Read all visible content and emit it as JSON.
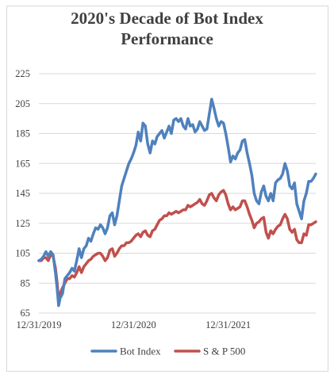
{
  "chart_data": {
    "type": "line",
    "title_lines": [
      "2020's Decade of Bot Index",
      "Performance"
    ],
    "xlabel": "",
    "ylabel": "",
    "ylim": [
      65,
      225
    ],
    "yticks": [
      "225",
      "205",
      "185",
      "165",
      "145",
      "125",
      "105",
      "85",
      "65"
    ],
    "xticks": [
      "12/31/2019",
      "12/31/2020",
      "12/31/2021"
    ],
    "grid": "horizontal",
    "legend_position": "bottom",
    "colors": {
      "bot": "#4f81bd",
      "sp": "#c0504d"
    },
    "x_unit": "months since 12/31/2019",
    "series": [
      {
        "name": "Bot Index",
        "points": [
          [
            0,
            100
          ],
          [
            0.3,
            101
          ],
          [
            0.6,
            103
          ],
          [
            0.9,
            106
          ],
          [
            1.2,
            103
          ],
          [
            1.5,
            106
          ],
          [
            1.8,
            104
          ],
          [
            2.1,
            92
          ],
          [
            2.3,
            82
          ],
          [
            2.5,
            70
          ],
          [
            2.7,
            75
          ],
          [
            3.0,
            78
          ],
          [
            3.3,
            88
          ],
          [
            3.6,
            90
          ],
          [
            3.9,
            92
          ],
          [
            4.2,
            95
          ],
          [
            4.5,
            93
          ],
          [
            4.8,
            100
          ],
          [
            5.1,
            108
          ],
          [
            5.4,
            102
          ],
          [
            5.7,
            108
          ],
          [
            6.0,
            110
          ],
          [
            6.3,
            115
          ],
          [
            6.6,
            113
          ],
          [
            6.9,
            118
          ],
          [
            7.2,
            122
          ],
          [
            7.5,
            121
          ],
          [
            7.8,
            124
          ],
          [
            8.1,
            122
          ],
          [
            8.4,
            118
          ],
          [
            8.7,
            122
          ],
          [
            9.0,
            130
          ],
          [
            9.3,
            132
          ],
          [
            9.6,
            124
          ],
          [
            9.9,
            130
          ],
          [
            10.2,
            140
          ],
          [
            10.5,
            150
          ],
          [
            10.8,
            155
          ],
          [
            11.1,
            160
          ],
          [
            11.4,
            165
          ],
          [
            11.7,
            168
          ],
          [
            12.0,
            172
          ],
          [
            12.3,
            177
          ],
          [
            12.6,
            186
          ],
          [
            12.9,
            180
          ],
          [
            13.2,
            192
          ],
          [
            13.5,
            190
          ],
          [
            13.8,
            178
          ],
          [
            14.1,
            172
          ],
          [
            14.4,
            180
          ],
          [
            14.7,
            178
          ],
          [
            15.0,
            183
          ],
          [
            15.3,
            185
          ],
          [
            15.6,
            187
          ],
          [
            15.9,
            182
          ],
          [
            16.2,
            186
          ],
          [
            16.5,
            190
          ],
          [
            16.8,
            185
          ],
          [
            17.1,
            194
          ],
          [
            17.4,
            195
          ],
          [
            17.7,
            193
          ],
          [
            18.0,
            195
          ],
          [
            18.3,
            190
          ],
          [
            18.6,
            188
          ],
          [
            18.9,
            195
          ],
          [
            19.2,
            190
          ],
          [
            19.5,
            191
          ],
          [
            19.8,
            186
          ],
          [
            20.1,
            188
          ],
          [
            20.4,
            193
          ],
          [
            20.7,
            190
          ],
          [
            21.0,
            187
          ],
          [
            21.3,
            188
          ],
          [
            21.6,
            198
          ],
          [
            21.9,
            208
          ],
          [
            22.2,
            202
          ],
          [
            22.5,
            195
          ],
          [
            22.8,
            190
          ],
          [
            23.1,
            193
          ],
          [
            23.4,
            192
          ],
          [
            23.7,
            185
          ],
          [
            24.0,
            176
          ],
          [
            24.3,
            166
          ],
          [
            24.6,
            170
          ],
          [
            24.9,
            168
          ],
          [
            25.2,
            172
          ],
          [
            25.5,
            174
          ],
          [
            25.8,
            180
          ],
          [
            26.1,
            181
          ],
          [
            26.4,
            172
          ],
          [
            26.7,
            165
          ],
          [
            27.0,
            157
          ],
          [
            27.3,
            145
          ],
          [
            27.6,
            140
          ],
          [
            27.9,
            138
          ],
          [
            28.2,
            146
          ],
          [
            28.5,
            150
          ],
          [
            28.8,
            143
          ],
          [
            29.1,
            140
          ],
          [
            29.4,
            145
          ],
          [
            29.7,
            140
          ],
          [
            30.0,
            152
          ],
          [
            30.3,
            154
          ],
          [
            30.6,
            155
          ],
          [
            30.9,
            158
          ],
          [
            31.2,
            165
          ],
          [
            31.5,
            160
          ],
          [
            31.8,
            150
          ],
          [
            32.1,
            148
          ],
          [
            32.4,
            152
          ],
          [
            32.7,
            138
          ],
          [
            33.0,
            133
          ],
          [
            33.3,
            128
          ],
          [
            33.6,
            140
          ],
          [
            33.9,
            145
          ],
          [
            34.2,
            153
          ],
          [
            34.5,
            153
          ],
          [
            34.8,
            155
          ],
          [
            35.1,
            158
          ]
        ]
      },
      {
        "name": "S & P 500",
        "points": [
          [
            0,
            100
          ],
          [
            0.3,
            100
          ],
          [
            0.6,
            102
          ],
          [
            0.9,
            102
          ],
          [
            1.2,
            100
          ],
          [
            1.5,
            104
          ],
          [
            1.8,
            103
          ],
          [
            2.1,
            95
          ],
          [
            2.3,
            86
          ],
          [
            2.5,
            74
          ],
          [
            2.7,
            78
          ],
          [
            3.0,
            82
          ],
          [
            3.3,
            85
          ],
          [
            3.6,
            88
          ],
          [
            3.9,
            88
          ],
          [
            4.2,
            90
          ],
          [
            4.5,
            89
          ],
          [
            4.8,
            92
          ],
          [
            5.1,
            96
          ],
          [
            5.4,
            92
          ],
          [
            5.7,
            96
          ],
          [
            6.0,
            98
          ],
          [
            6.3,
            100
          ],
          [
            6.6,
            101
          ],
          [
            6.9,
            103
          ],
          [
            7.2,
            104
          ],
          [
            7.5,
            105
          ],
          [
            7.8,
            105
          ],
          [
            8.1,
            103
          ],
          [
            8.4,
            100
          ],
          [
            8.7,
            102
          ],
          [
            9.0,
            107
          ],
          [
            9.3,
            108
          ],
          [
            9.6,
            103
          ],
          [
            9.9,
            105
          ],
          [
            10.2,
            108
          ],
          [
            10.5,
            110
          ],
          [
            10.8,
            110
          ],
          [
            11.1,
            112
          ],
          [
            11.4,
            112
          ],
          [
            11.7,
            113
          ],
          [
            12.0,
            115
          ],
          [
            12.3,
            117
          ],
          [
            12.6,
            118
          ],
          [
            12.9,
            116
          ],
          [
            13.2,
            119
          ],
          [
            13.5,
            120
          ],
          [
            13.8,
            117
          ],
          [
            14.1,
            116
          ],
          [
            14.4,
            120
          ],
          [
            14.7,
            121
          ],
          [
            15.0,
            124
          ],
          [
            15.3,
            127
          ],
          [
            15.6,
            128
          ],
          [
            15.9,
            130
          ],
          [
            16.2,
            130
          ],
          [
            16.5,
            132
          ],
          [
            16.8,
            131
          ],
          [
            17.1,
            132
          ],
          [
            17.4,
            133
          ],
          [
            17.7,
            132
          ],
          [
            18.0,
            133
          ],
          [
            18.3,
            134
          ],
          [
            18.6,
            134
          ],
          [
            18.9,
            137
          ],
          [
            19.2,
            136
          ],
          [
            19.5,
            137
          ],
          [
            19.8,
            138
          ],
          [
            20.1,
            139
          ],
          [
            20.4,
            141
          ],
          [
            20.7,
            138
          ],
          [
            21.0,
            137
          ],
          [
            21.3,
            140
          ],
          [
            21.6,
            144
          ],
          [
            21.9,
            145
          ],
          [
            22.2,
            142
          ],
          [
            22.5,
            140
          ],
          [
            22.8,
            144
          ],
          [
            23.1,
            146
          ],
          [
            23.4,
            147
          ],
          [
            23.7,
            144
          ],
          [
            24.0,
            138
          ],
          [
            24.3,
            134
          ],
          [
            24.6,
            136
          ],
          [
            24.9,
            134
          ],
          [
            25.2,
            135
          ],
          [
            25.5,
            136
          ],
          [
            25.8,
            140
          ],
          [
            26.1,
            140
          ],
          [
            26.4,
            136
          ],
          [
            26.7,
            131
          ],
          [
            27.0,
            127
          ],
          [
            27.3,
            122
          ],
          [
            27.6,
            125
          ],
          [
            27.9,
            126
          ],
          [
            28.2,
            128
          ],
          [
            28.5,
            129
          ],
          [
            28.8,
            119
          ],
          [
            29.1,
            115
          ],
          [
            29.4,
            120
          ],
          [
            29.7,
            118
          ],
          [
            30.0,
            121
          ],
          [
            30.3,
            123
          ],
          [
            30.6,
            124
          ],
          [
            30.9,
            128
          ],
          [
            31.2,
            131
          ],
          [
            31.5,
            128
          ],
          [
            31.8,
            121
          ],
          [
            32.1,
            119
          ],
          [
            32.4,
            121
          ],
          [
            32.7,
            114
          ],
          [
            33.0,
            112
          ],
          [
            33.3,
            112
          ],
          [
            33.6,
            118
          ],
          [
            33.9,
            117
          ],
          [
            34.2,
            124
          ],
          [
            34.5,
            124
          ],
          [
            34.8,
            125
          ],
          [
            35.1,
            126
          ]
        ]
      }
    ],
    "legend": [
      {
        "label": "Bot Index",
        "color_key": "bot"
      },
      {
        "label": "S & P 500",
        "color_key": "sp"
      }
    ]
  }
}
